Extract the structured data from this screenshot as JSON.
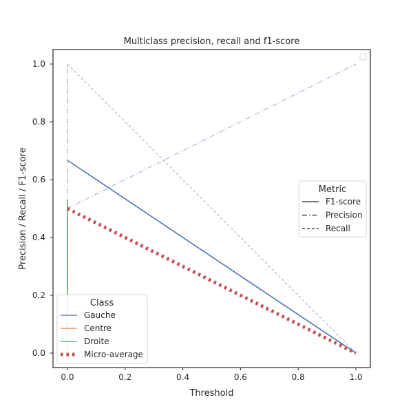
{
  "chart_data": {
    "type": "line",
    "title": "Multiclass precision, recall and f1-score",
    "xlabel": "Threshold",
    "ylabel": "Precision / Recall / F1-score",
    "xlim": [
      -0.05,
      1.05
    ],
    "ylim": [
      -0.05,
      1.05
    ],
    "xticks": [
      "0.0",
      "0.2",
      "0.4",
      "0.6",
      "0.8",
      "1.0"
    ],
    "yticks": [
      "0.0",
      "0.2",
      "0.4",
      "0.6",
      "0.8",
      "1.0"
    ],
    "grid": false,
    "colors": {
      "gauche": "#4c72b0",
      "centre": "#dd8452",
      "droite": "#55a868",
      "micro": "#c44e52",
      "axes": "#262626"
    },
    "series": [
      {
        "class": "gauche",
        "metric": "f1",
        "x": [
          0.0,
          1.0
        ],
        "y": [
          0.667,
          0.0
        ]
      },
      {
        "class": "gauche",
        "metric": "precision",
        "x": [
          0.0,
          1.0
        ],
        "y": [
          0.5,
          1.0
        ]
      },
      {
        "class": "gauche",
        "metric": "recall",
        "x": [
          0.0,
          1.0
        ],
        "y": [
          1.0,
          0.0
        ]
      },
      {
        "class": "centre",
        "metric": "f1",
        "x": [
          0.0,
          0.0
        ],
        "y": [
          0.0,
          0.0
        ]
      },
      {
        "class": "centre",
        "metric": "precision",
        "x": [
          0.0,
          0.0
        ],
        "y": [
          0.0,
          1.0
        ]
      },
      {
        "class": "centre",
        "metric": "recall",
        "x": [
          0.0,
          0.0
        ],
        "y": [
          0.0,
          0.5
        ]
      },
      {
        "class": "droite",
        "metric": "f1",
        "x": [
          0.0,
          0.0
        ],
        "y": [
          0.0,
          0.53
        ]
      },
      {
        "class": "droite",
        "metric": "precision",
        "x": [
          0.0,
          0.0
        ],
        "y": [
          0.0,
          1.0
        ]
      },
      {
        "class": "droite",
        "metric": "recall",
        "x": [
          0.0,
          0.0
        ],
        "y": [
          0.0,
          0.5
        ]
      },
      {
        "class": "micro",
        "metric": "micro",
        "x": [
          0.0,
          1.0
        ],
        "y": [
          0.5,
          0.0
        ]
      }
    ],
    "legend_class": {
      "title": "Class",
      "placement": "lower-left",
      "entries": [
        {
          "label": "Gauche",
          "class": "gauche",
          "style": "solid"
        },
        {
          "label": "Centre",
          "class": "centre",
          "style": "solid"
        },
        {
          "label": "Droite",
          "class": "droite",
          "style": "solid"
        },
        {
          "label": "Micro-average",
          "class": "micro",
          "style": "dotted"
        }
      ]
    },
    "legend_metric": {
      "title": "Metric",
      "placement": "center-right",
      "entries": [
        {
          "label": "F1-score",
          "style": "solid"
        },
        {
          "label": "Precision",
          "style": "dashdot"
        },
        {
          "label": "Recall",
          "style": "dashed"
        }
      ]
    }
  }
}
